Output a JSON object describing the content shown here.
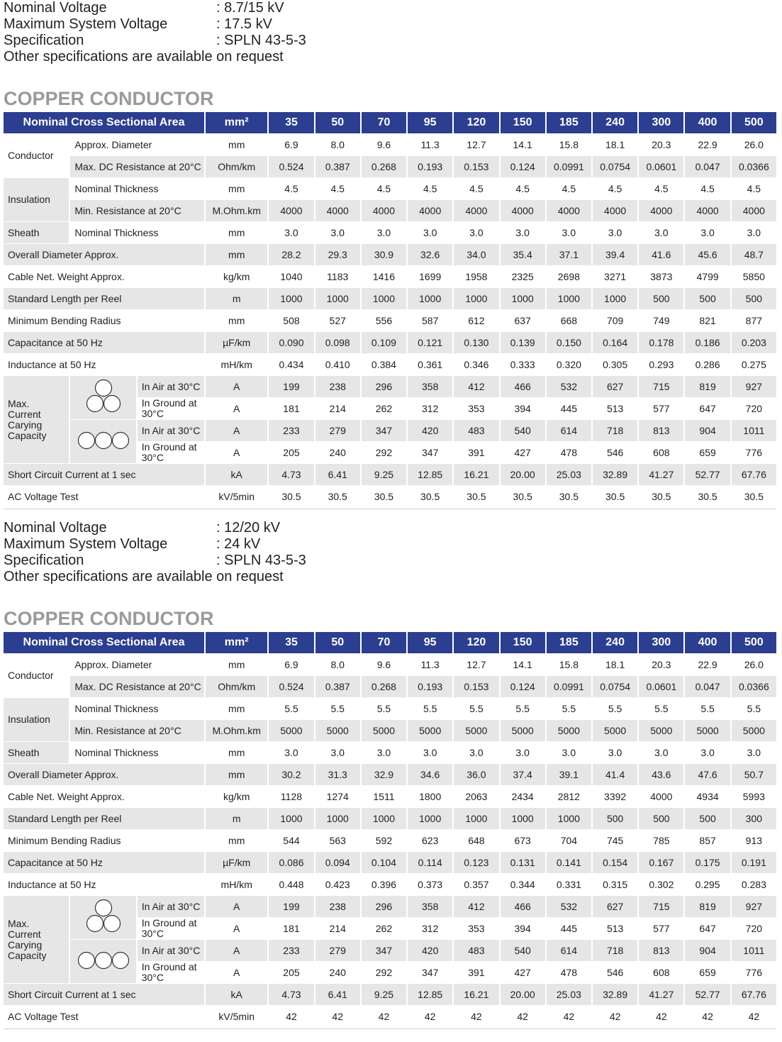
{
  "sections": [
    {
      "specs": [
        {
          "label": "Nominal Voltage",
          "value": ": 8.7/15 kV"
        },
        {
          "label": "Maximum System Voltage",
          "value": ": 17.5 kV"
        },
        {
          "label": "Specification",
          "value": ": SPLN 43-5-3"
        }
      ],
      "note": "Other specifications are available on request",
      "heading": "COPPER CONDUCTOR",
      "table": {
        "header": [
          "Nominal Cross Sectional Area",
          "mm²",
          "35",
          "50",
          "70",
          "95",
          "120",
          "150",
          "185",
          "240",
          "300",
          "400",
          "500"
        ],
        "groups": [
          {
            "name": "Conductor",
            "rows": [
              {
                "label": "Approx. Diameter",
                "unit": "mm",
                "values": [
                  "6.9",
                  "8.0",
                  "9.6",
                  "11.3",
                  "12.7",
                  "14.1",
                  "15.8",
                  "18.1",
                  "20.3",
                  "22.9",
                  "26.0"
                ]
              },
              {
                "label": "Max. DC Resistance at 20°C",
                "unit": "Ohm/km",
                "values": [
                  "0.524",
                  "0.387",
                  "0.268",
                  "0.193",
                  "0.153",
                  "0.124",
                  "0.0991",
                  "0.0754",
                  "0.0601",
                  "0.047",
                  "0.0366"
                ]
              }
            ]
          },
          {
            "name": "Insulation",
            "rows": [
              {
                "label": "Nominal Thickness",
                "unit": "mm",
                "values": [
                  "4.5",
                  "4.5",
                  "4.5",
                  "4.5",
                  "4.5",
                  "4.5",
                  "4.5",
                  "4.5",
                  "4.5",
                  "4.5",
                  "4.5"
                ]
              },
              {
                "label": "Min. Resistance at 20°C",
                "unit": "M.Ohm.km",
                "values": [
                  "4000",
                  "4000",
                  "4000",
                  "4000",
                  "4000",
                  "4000",
                  "4000",
                  "4000",
                  "4000",
                  "4000",
                  "4000"
                ]
              }
            ]
          },
          {
            "name": "Sheath",
            "rows": [
              {
                "label": "Nominal Thickness",
                "unit": "mm",
                "values": [
                  "3.0",
                  "3.0",
                  "3.0",
                  "3.0",
                  "3.0",
                  "3.0",
                  "3.0",
                  "3.0",
                  "3.0",
                  "3.0",
                  "3.0"
                ]
              }
            ]
          },
          {
            "name": "Overall Diameter Approx.",
            "unit": "mm",
            "values": [
              "28.2",
              "29.3",
              "30.9",
              "32.6",
              "34.0",
              "35.4",
              "37.1",
              "39.4",
              "41.6",
              "45.6",
              "48.7"
            ]
          },
          {
            "name": "Cable Net. Weight Approx.",
            "unit": "kg/km",
            "values": [
              "1040",
              "1183",
              "1416",
              "1699",
              "1958",
              "2325",
              "2698",
              "3271",
              "3873",
              "4799",
              "5850"
            ]
          },
          {
            "name": "Standard Length per Reel",
            "unit": "m",
            "values": [
              "1000",
              "1000",
              "1000",
              "1000",
              "1000",
              "1000",
              "1000",
              "1000",
              "500",
              "500",
              "500"
            ]
          },
          {
            "name": "Minimum Bending Radius",
            "unit": "mm",
            "values": [
              "508",
              "527",
              "556",
              "587",
              "612",
              "637",
              "668",
              "709",
              "749",
              "821",
              "877"
            ]
          },
          {
            "name": "Capacitance at 50 Hz",
            "unit": "µF/km",
            "values": [
              "0.090",
              "0.098",
              "0.109",
              "0.121",
              "0.130",
              "0.139",
              "0.150",
              "0.164",
              "0.178",
              "0.186",
              "0.203"
            ]
          },
          {
            "name": "Inductance at 50 Hz",
            "unit": "mH/km",
            "values": [
              "0.434",
              "0.410",
              "0.384",
              "0.361",
              "0.346",
              "0.333",
              "0.320",
              "0.305",
              "0.293",
              "0.286",
              "0.275"
            ]
          },
          {
            "name": "Max. Current Carying Capacity",
            "rows": [
              {
                "label": "In Air at 30°C",
                "unit": "A",
                "values": [
                  "199",
                  "238",
                  "296",
                  "358",
                  "412",
                  "466",
                  "532",
                  "627",
                  "715",
                  "819",
                  "927"
                ]
              },
              {
                "label": "In Ground at 30°C",
                "unit": "A",
                "values": [
                  "181",
                  "214",
                  "262",
                  "312",
                  "353",
                  "394",
                  "445",
                  "513",
                  "577",
                  "647",
                  "720"
                ]
              },
              {
                "label": "In Air at 30°C",
                "unit": "A",
                "values": [
                  "233",
                  "279",
                  "347",
                  "420",
                  "483",
                  "540",
                  "614",
                  "718",
                  "813",
                  "904",
                  "1011"
                ]
              },
              {
                "label": "In Ground at 30°C",
                "unit": "A",
                "values": [
                  "205",
                  "240",
                  "292",
                  "347",
                  "391",
                  "427",
                  "478",
                  "546",
                  "608",
                  "659",
                  "776"
                ]
              }
            ]
          },
          {
            "name": "Short Circuit Current at 1 sec",
            "unit": "kA",
            "values": [
              "4.73",
              "6.41",
              "9.25",
              "12.85",
              "16.21",
              "20.00",
              "25.03",
              "32.89",
              "41.27",
              "52.77",
              "67.76"
            ]
          },
          {
            "name": "AC Voltage Test",
            "unit": "kV/5min",
            "values": [
              "30.5",
              "30.5",
              "30.5",
              "30.5",
              "30.5",
              "30.5",
              "30.5",
              "30.5",
              "30.5",
              "30.5",
              "30.5"
            ]
          }
        ]
      }
    },
    {
      "specs": [
        {
          "label": "Nominal Voltage",
          "value": ": 12/20 kV"
        },
        {
          "label": "Maximum System Voltage",
          "value": ": 24 kV"
        },
        {
          "label": "Specification",
          "value": ": SPLN 43-5-3"
        }
      ],
      "note": "Other specifications are available on request",
      "heading": "COPPER CONDUCTOR",
      "table": {
        "header": [
          "Nominal Cross Sectional Area",
          "mm²",
          "35",
          "50",
          "70",
          "95",
          "120",
          "150",
          "185",
          "240",
          "300",
          "400",
          "500"
        ],
        "groups": [
          {
            "name": "Conductor",
            "rows": [
              {
                "label": "Approx. Diameter",
                "unit": "mm",
                "values": [
                  "6.9",
                  "8.0",
                  "9.6",
                  "11.3",
                  "12.7",
                  "14.1",
                  "15.8",
                  "18.1",
                  "20.3",
                  "22.9",
                  "26.0"
                ]
              },
              {
                "label": "Max. DC Resistance at 20°C",
                "unit": "Ohm/km",
                "values": [
                  "0.524",
                  "0.387",
                  "0.268",
                  "0.193",
                  "0.153",
                  "0.124",
                  "0.0991",
                  "0.0754",
                  "0.0601",
                  "0.047",
                  "0.0366"
                ]
              }
            ]
          },
          {
            "name": "Insulation",
            "rows": [
              {
                "label": "Nominal Thickness",
                "unit": "mm",
                "values": [
                  "5.5",
                  "5.5",
                  "5.5",
                  "5.5",
                  "5.5",
                  "5.5",
                  "5.5",
                  "5.5",
                  "5.5",
                  "5.5",
                  "5.5"
                ]
              },
              {
                "label": "Min. Resistance at 20°C",
                "unit": "M.Ohm.km",
                "values": [
                  "5000",
                  "5000",
                  "5000",
                  "5000",
                  "5000",
                  "5000",
                  "5000",
                  "5000",
                  "5000",
                  "5000",
                  "5000"
                ]
              }
            ]
          },
          {
            "name": "Sheath",
            "rows": [
              {
                "label": "Nominal Thickness",
                "unit": "mm",
                "values": [
                  "3.0",
                  "3.0",
                  "3.0",
                  "3.0",
                  "3.0",
                  "3.0",
                  "3.0",
                  "3.0",
                  "3.0",
                  "3.0",
                  "3.0"
                ]
              }
            ]
          },
          {
            "name": "Overall Diameter Approx.",
            "unit": "mm",
            "values": [
              "30.2",
              "31.3",
              "32.9",
              "34.6",
              "36.0",
              "37.4",
              "39.1",
              "41.4",
              "43.6",
              "47.6",
              "50.7"
            ]
          },
          {
            "name": "Cable Net. Weight Approx.",
            "unit": "kg/km",
            "values": [
              "1128",
              "1274",
              "1511",
              "1800",
              "2063",
              "2434",
              "2812",
              "3392",
              "4000",
              "4934",
              "5993"
            ]
          },
          {
            "name": "Standard Length per Reel",
            "unit": "m",
            "values": [
              "1000",
              "1000",
              "1000",
              "1000",
              "1000",
              "1000",
              "1000",
              "500",
              "500",
              "500",
              "300"
            ]
          },
          {
            "name": "Minimum Bending Radius",
            "unit": "mm",
            "values": [
              "544",
              "563",
              "592",
              "623",
              "648",
              "673",
              "704",
              "745",
              "785",
              "857",
              "913"
            ]
          },
          {
            "name": "Capacitance at 50 Hz",
            "unit": "µF/km",
            "values": [
              "0.086",
              "0.094",
              "0.104",
              "0.114",
              "0.123",
              "0.131",
              "0.141",
              "0.154",
              "0.167",
              "0.175",
              "0.191"
            ]
          },
          {
            "name": "Inductance at 50 Hz",
            "unit": "mH/km",
            "values": [
              "0.448",
              "0.423",
              "0.396",
              "0.373",
              "0.357",
              "0.344",
              "0.331",
              "0.315",
              "0.302",
              "0.295",
              "0.283"
            ]
          },
          {
            "name": "Max. Current Carying Capacity",
            "rows": [
              {
                "label": "In Air at 30°C",
                "unit": "A",
                "values": [
                  "199",
                  "238",
                  "296",
                  "358",
                  "412",
                  "466",
                  "532",
                  "627",
                  "715",
                  "819",
                  "927"
                ]
              },
              {
                "label": "In Ground at 30°C",
                "unit": "A",
                "values": [
                  "181",
                  "214",
                  "262",
                  "312",
                  "353",
                  "394",
                  "445",
                  "513",
                  "577",
                  "647",
                  "720"
                ]
              },
              {
                "label": "In Air at 30°C",
                "unit": "A",
                "values": [
                  "233",
                  "279",
                  "347",
                  "420",
                  "483",
                  "540",
                  "614",
                  "718",
                  "813",
                  "904",
                  "1011"
                ]
              },
              {
                "label": "In Ground at 30°C",
                "unit": "A",
                "values": [
                  "205",
                  "240",
                  "292",
                  "347",
                  "391",
                  "427",
                  "478",
                  "546",
                  "608",
                  "659",
                  "776"
                ]
              }
            ]
          },
          {
            "name": "Short Circuit Current at 1 sec",
            "unit": "kA",
            "values": [
              "4.73",
              "6.41",
              "9.25",
              "12.85",
              "16.21",
              "20.00",
              "25.03",
              "32.89",
              "41.27",
              "52.77",
              "67.76"
            ]
          },
          {
            "name": "AC Voltage Test",
            "unit": "kV/5min",
            "values": [
              "42",
              "42",
              "42",
              "42",
              "42",
              "42",
              "42",
              "42",
              "42",
              "42",
              "42"
            ]
          }
        ]
      }
    }
  ]
}
